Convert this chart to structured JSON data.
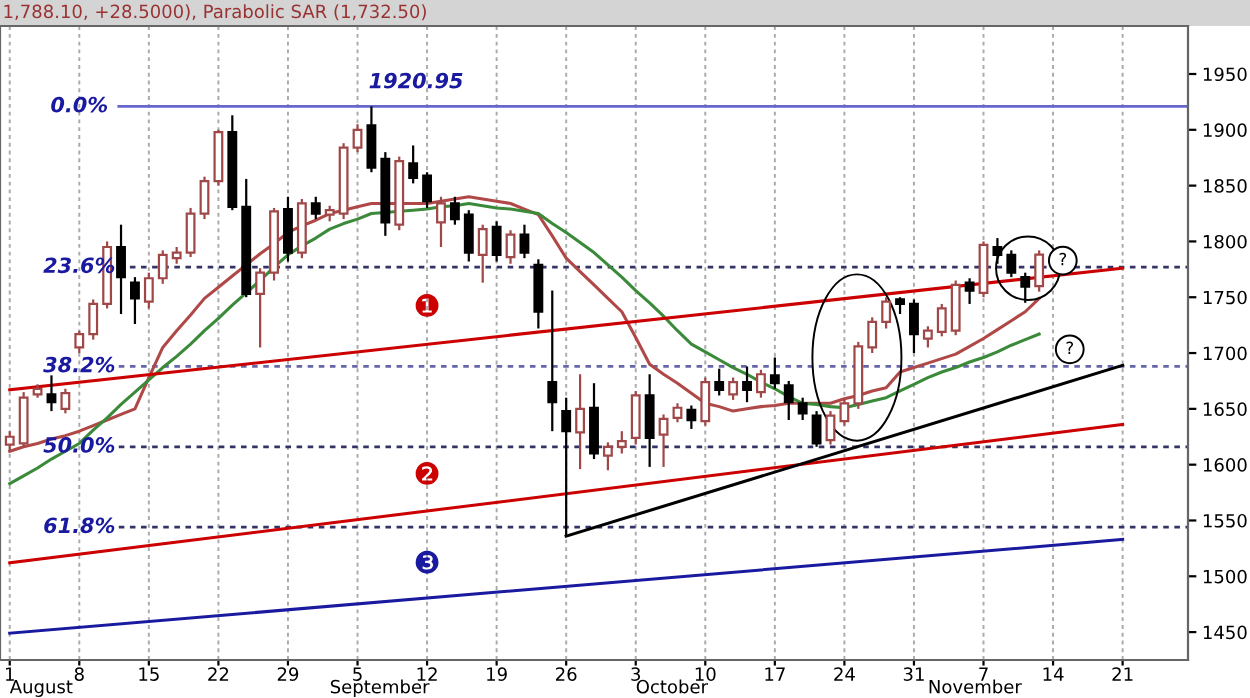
{
  "chart_data": {
    "type": "candlestick",
    "title": "1,788.10, +28.5000), Parabolic SAR (1,732.50)",
    "categories": [
      "1",
      null,
      null,
      null,
      null,
      "8",
      null,
      null,
      null,
      null,
      "15",
      null,
      null,
      null,
      null,
      "22",
      null,
      null,
      null,
      null,
      "29",
      null,
      null,
      null,
      null,
      "5",
      null,
      null,
      null,
      null,
      "12",
      null,
      null,
      null,
      null,
      "19",
      null,
      null,
      null,
      null,
      "26",
      null,
      null,
      null,
      null,
      "3",
      null,
      null,
      null,
      null,
      "10",
      null,
      null,
      null,
      null,
      "17",
      null,
      null,
      null,
      null,
      "24",
      null,
      null,
      null,
      null,
      "31",
      null,
      null,
      null,
      null,
      "7",
      null,
      null,
      null,
      null,
      "14",
      null,
      null,
      null,
      null,
      "21",
      null,
      null,
      null,
      null
    ],
    "series": [
      {
        "color": "#a04848",
        "ohlc": [
          [
            1618,
            1630,
            1612,
            1625
          ],
          [
            1619,
            1665,
            1615,
            1660
          ],
          [
            1663,
            1672,
            1660,
            1668
          ],
          null,
          [
            1650,
            1668,
            1646,
            1664
          ],
          [
            1705,
            1720,
            1700,
            1717
          ],
          [
            1717,
            1748,
            1712,
            1744
          ],
          [
            1744,
            1800,
            1740,
            1795
          ],
          null,
          null,
          [
            1746,
            1772,
            1740,
            1767
          ],
          [
            1767,
            1792,
            1762,
            1788
          ],
          [
            1785,
            1795,
            1780,
            1790
          ],
          [
            1790,
            1830,
            1786,
            1825
          ],
          [
            1825,
            1858,
            1820,
            1854
          ],
          [
            1854,
            1900,
            1850,
            1898
          ],
          null,
          null,
          [
            1753,
            1776,
            1705,
            1772
          ],
          [
            1772,
            1830,
            1765,
            1827
          ],
          null,
          [
            1790,
            1838,
            1785,
            1834
          ],
          null,
          [
            1824,
            1832,
            1818,
            1828
          ],
          [
            1825,
            1888,
            1820,
            1884
          ],
          [
            1884,
            1905,
            1880,
            1900
          ],
          null,
          null,
          [
            1815,
            1876,
            1810,
            1872
          ],
          null,
          null,
          [
            1817,
            1840,
            1795,
            1834
          ],
          null,
          null,
          [
            1788,
            1815,
            1763,
            1811
          ],
          null,
          [
            1786,
            1810,
            1780,
            1806
          ],
          null,
          null,
          null,
          null,
          [
            1629,
            1681,
            1596,
            1650
          ],
          null,
          [
            1608,
            1620,
            1595,
            1616
          ],
          [
            1616,
            1630,
            1610,
            1621
          ],
          [
            1624,
            1666,
            1618,
            1662
          ],
          null,
          [
            1627,
            1645,
            1598,
            1641
          ],
          [
            1642,
            1655,
            1638,
            1651
          ],
          null,
          [
            1639,
            1678,
            1635,
            1674
          ],
          null,
          [
            1663,
            1678,
            1658,
            1674
          ],
          null,
          [
            1665,
            1685,
            1660,
            1681
          ],
          null,
          null,
          null,
          null,
          [
            1622,
            1648,
            1618,
            1644
          ],
          [
            1639,
            1659,
            1635,
            1655
          ],
          [
            1655,
            1710,
            1650,
            1706
          ],
          [
            1705,
            1732,
            1700,
            1728
          ],
          [
            1728,
            1750,
            1722,
            1746
          ],
          null,
          null,
          [
            1713,
            1724,
            1705,
            1720
          ],
          [
            1719,
            1744,
            1715,
            1740
          ],
          [
            1720,
            1765,
            1716,
            1761
          ],
          null,
          [
            1754,
            1800,
            1750,
            1797
          ],
          null,
          null,
          null,
          [
            1760,
            1792,
            1755,
            1788.1
          ],
          null,
          null,
          null,
          null,
          null,
          null,
          null,
          null,
          null,
          null
        ]
      },
      {
        "color": "#000000",
        "ohlc": [
          null,
          null,
          null,
          [
            1663,
            1680,
            1648,
            1656
          ],
          null,
          null,
          null,
          null,
          [
            1795,
            1815,
            1735,
            1768
          ],
          [
            1763,
            1768,
            1726,
            1749
          ],
          null,
          null,
          null,
          null,
          null,
          null,
          [
            1898,
            1913,
            1828,
            1831
          ],
          [
            1831,
            1856,
            1750,
            1753
          ],
          null,
          null,
          [
            1829,
            1840,
            1782,
            1790
          ],
          null,
          [
            1834,
            1840,
            1820,
            1825
          ],
          null,
          null,
          null,
          [
            1904,
            1920.95,
            1862,
            1866
          ],
          [
            1874,
            1880,
            1805,
            1817
          ],
          null,
          [
            1870,
            1886,
            1852,
            1857
          ],
          [
            1859,
            1862,
            1830,
            1836
          ],
          null,
          [
            1834,
            1840,
            1815,
            1820
          ],
          [
            1824,
            1828,
            1782,
            1790
          ],
          null,
          [
            1813,
            1818,
            1782,
            1788
          ],
          null,
          [
            1806,
            1815,
            1785,
            1790
          ],
          [
            1779,
            1784,
            1722,
            1737
          ],
          [
            1674,
            1756,
            1630,
            1656
          ],
          [
            1648,
            1660,
            1536,
            1630
          ],
          null,
          [
            1651,
            1673,
            1605,
            1610
          ],
          null,
          null,
          null,
          [
            1662,
            1681,
            1598,
            1624
          ],
          null,
          null,
          [
            1649,
            1653,
            1632,
            1640
          ],
          null,
          [
            1674,
            1686,
            1662,
            1667
          ],
          null,
          [
            1674,
            1688,
            1656,
            1667
          ],
          null,
          [
            1680,
            1696,
            1668,
            1673
          ],
          [
            1671,
            1675,
            1640,
            1656
          ],
          [
            1655,
            1660,
            1640,
            1646
          ],
          [
            1644,
            1648,
            1616,
            1619
          ],
          null,
          null,
          null,
          null,
          null,
          [
            1748,
            1750,
            1735,
            1744
          ],
          [
            1744,
            1748,
            1700,
            1717
          ],
          null,
          null,
          null,
          [
            1763,
            1767,
            1744,
            1756
          ],
          null,
          [
            1795,
            1803,
            1780,
            1788
          ],
          [
            1788,
            1792,
            1768,
            1772
          ],
          [
            1768,
            1772,
            1745,
            1759.6
          ],
          null,
          null,
          null,
          null,
          null,
          null,
          null,
          null,
          null,
          null,
          null
        ]
      },
      {
        "type": "line",
        "color": "#b04848",
        "values": [
          1612,
          1616,
          1619,
          1623,
          1626,
          1630,
          1635,
          1640,
          1645,
          1650,
          1678,
          1705,
          1720,
          1734,
          1749,
          1759,
          1769,
          1779,
          1789,
          1798,
          1808,
          1814,
          1819,
          1825,
          1828,
          1831,
          1834,
          1834,
          1834,
          1834,
          1834,
          1836,
          1838,
          1840,
          1838,
          1836,
          1834,
          1829,
          1824,
          1805,
          1785,
          1773,
          1761,
          1749,
          1737,
          1714,
          1690,
          1681,
          1673,
          1664,
          1655,
          1652,
          1648,
          1650,
          1652,
          1653,
          1655,
          1655,
          1655,
          1655,
          1659,
          1662,
          1666,
          1669,
          1683,
          1687,
          1691,
          1695,
          1699,
          1706,
          1713,
          1721,
          1729,
          1737,
          1749,
          null,
          null,
          null,
          null,
          null,
          null,
          null,
          null,
          null,
          null
        ]
      },
      {
        "type": "line",
        "color": "#3a8a3a",
        "values": [
          1583,
          1590,
          1597,
          1605,
          1612,
          1619,
          1631,
          1642,
          1654,
          1665,
          1676,
          1687,
          1697,
          1708,
          1720,
          1731,
          1743,
          1754,
          1765,
          1777,
          1788,
          1796,
          1803,
          1811,
          1816,
          1820,
          1825,
          1826,
          1827,
          1828,
          1829,
          1831,
          1832,
          1834,
          1832,
          1830,
          1829,
          1827,
          1825,
          1816,
          1808,
          1799,
          1790,
          1779,
          1768,
          1756,
          1745,
          1733,
          1720,
          1708,
          1701,
          1694,
          1687,
          1681,
          1674,
          1668,
          1661,
          1655,
          1654,
          1652,
          1651,
          1654,
          1657,
          1660,
          1666,
          1672,
          1678,
          1683,
          1687,
          1692,
          1696,
          1701,
          1707,
          1712,
          1717,
          null,
          null,
          null,
          null,
          null,
          null,
          null,
          null,
          null,
          null
        ]
      },
      {
        "type": "line",
        "color": "#cc0000",
        "x": [
          "1",
          "21"
        ],
        "values": [
          1667,
          1776
        ]
      },
      {
        "type": "line",
        "color": "#cc0000",
        "x": [
          "1",
          "21"
        ],
        "values": [
          1512,
          1636
        ]
      },
      {
        "type": "line",
        "color": "#1a1aa0",
        "x": [
          "1",
          "21"
        ],
        "values": [
          1449,
          1533
        ]
      },
      {
        "type": "line",
        "color": "#000000",
        "x": [
          "26",
          "21"
        ],
        "values": [
          1536,
          1689
        ]
      }
    ],
    "ylim": [
      1425,
      1993
    ],
    "yticks": [
      1450,
      1500,
      1550,
      1600,
      1650,
      1700,
      1750,
      1800,
      1850,
      1900,
      1950
    ],
    "grid": "x",
    "ref_lines": [
      {
        "axis": "y",
        "value": 1920.95,
        "color": "#6666cc",
        "line_style": "solid"
      },
      {
        "axis": "y",
        "value": 1777,
        "color": "#333366",
        "line_style": "dashed"
      },
      {
        "axis": "y",
        "value": 1688,
        "color": "#6666aa",
        "line_style": "dashed"
      },
      {
        "axis": "y",
        "value": 1616,
        "color": "#333366",
        "line_style": "dashed"
      },
      {
        "axis": "y",
        "value": 1544,
        "color": "#333366",
        "line_style": "dashed"
      }
    ],
    "annotations": [
      {
        "text": "1920.95",
        "x": "5",
        "y": 1920.95
      },
      "0.0%",
      "23.6%",
      "38.2%",
      "50.0%",
      "61.8%",
      "❶",
      "❷",
      "❸",
      "?",
      "?",
      "August",
      "September",
      "October",
      "November"
    ]
  }
}
